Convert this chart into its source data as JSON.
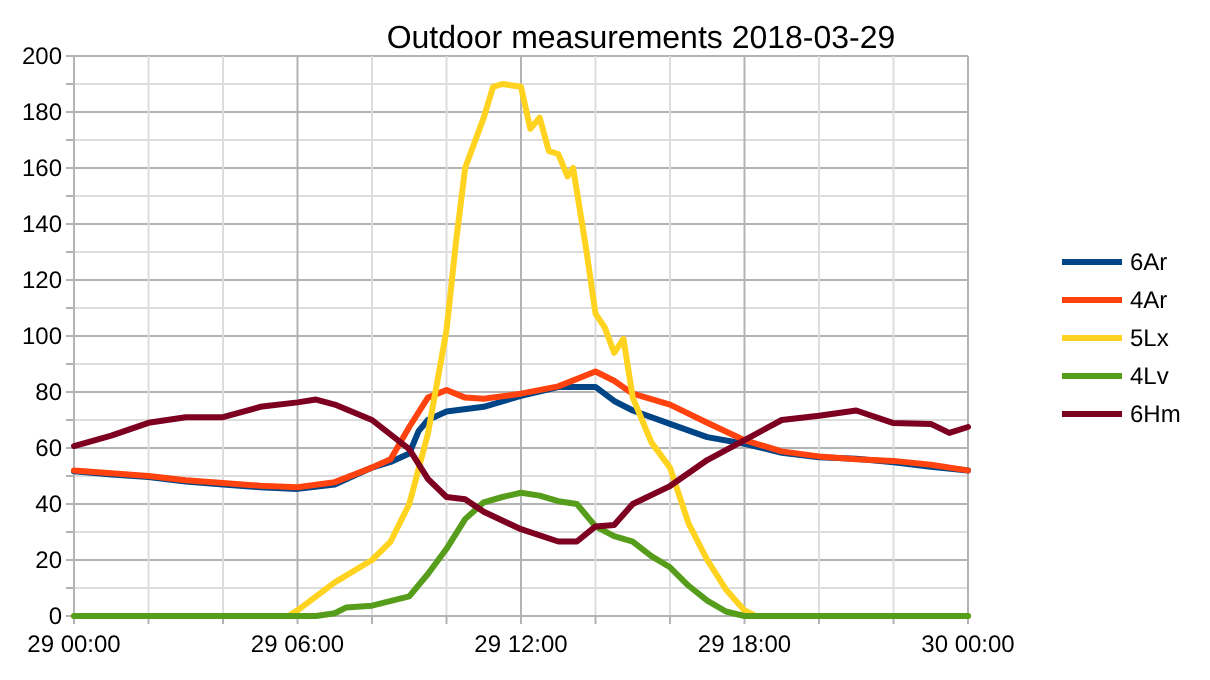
{
  "chart_data": {
    "type": "line",
    "title": "Outdoor measurements 2018-03-29",
    "xlim": [
      "2018-03-29T00:00",
      "2018-03-30T00:00"
    ],
    "ylim": [
      0,
      200
    ],
    "xticks": [
      {
        "value": "2018-03-29T00:00",
        "label": "29 00:00"
      },
      {
        "value": "2018-03-29T02:00",
        "label": null
      },
      {
        "value": "2018-03-29T04:00",
        "label": null
      },
      {
        "value": "2018-03-29T06:00",
        "label": "29 06:00"
      },
      {
        "value": "2018-03-29T08:00",
        "label": null
      },
      {
        "value": "2018-03-29T10:00",
        "label": null
      },
      {
        "value": "2018-03-29T12:00",
        "label": "29 12:00"
      },
      {
        "value": "2018-03-29T14:00",
        "label": null
      },
      {
        "value": "2018-03-29T16:00",
        "label": null
      },
      {
        "value": "2018-03-29T18:00",
        "label": "29 18:00"
      },
      {
        "value": "2018-03-29T20:00",
        "label": null
      },
      {
        "value": "2018-03-29T22:00",
        "label": null
      },
      {
        "value": "2018-03-30T00:00",
        "label": "30 00:00"
      }
    ],
    "yticks": [
      0,
      {
        "value": 10,
        "label": null
      },
      20,
      {
        "value": 30,
        "label": null
      },
      40,
      {
        "value": 50,
        "label": null
      },
      60,
      {
        "value": 70,
        "label": null
      },
      80,
      {
        "value": 90,
        "label": null
      },
      100,
      {
        "value": 110,
        "label": null
      },
      120,
      {
        "value": 130,
        "label": null
      },
      140,
      {
        "value": 150,
        "label": null
      },
      160,
      {
        "value": 170,
        "label": null
      },
      180,
      {
        "value": 190,
        "label": null
      },
      200
    ],
    "grid": true,
    "legend": "right",
    "marker": "none",
    "line_style": "solid",
    "series": [
      {
        "name": "6Ar",
        "color": "#004586",
        "x": [
          "2018-03-29T00:00",
          "2018-03-29T01:00",
          "2018-03-29T02:00",
          "2018-03-29T03:00",
          "2018-03-29T04:00",
          "2018-03-29T05:00",
          "2018-03-29T06:00",
          "2018-03-29T07:00",
          "2018-03-29T08:00",
          "2018-03-29T08:30",
          "2018-03-29T09:00",
          "2018-03-29T09:15",
          "2018-03-29T09:30",
          "2018-03-29T10:00",
          "2018-03-29T11:00",
          "2018-03-29T12:00",
          "2018-03-29T13:00",
          "2018-03-29T14:00",
          "2018-03-29T14:30",
          "2018-03-29T15:00",
          "2018-03-29T16:00",
          "2018-03-29T17:00",
          "2018-03-29T18:00",
          "2018-03-29T19:00",
          "2018-03-29T20:00",
          "2018-03-29T21:00",
          "2018-03-29T22:00",
          "2018-03-29T23:00",
          "2018-03-30T00:00"
        ],
        "values": [
          51.7,
          50.5,
          49.6,
          48,
          47,
          46,
          45.4,
          47,
          53,
          55,
          58,
          66,
          70,
          73,
          74.7,
          78.6,
          81.8,
          81.8,
          76.8,
          73.4,
          68.6,
          63.9,
          61.5,
          58.3,
          56.7,
          56.2,
          54.9,
          53.3,
          52
        ]
      },
      {
        "name": "4Ar",
        "color": "#ff420e",
        "x": [
          "2018-03-29T00:00",
          "2018-03-29T01:00",
          "2018-03-29T02:00",
          "2018-03-29T03:00",
          "2018-03-29T04:00",
          "2018-03-29T05:00",
          "2018-03-29T06:00",
          "2018-03-29T07:00",
          "2018-03-29T08:00",
          "2018-03-29T08:30",
          "2018-03-29T09:00",
          "2018-03-29T09:30",
          "2018-03-29T10:00",
          "2018-03-29T10:30",
          "2018-03-29T11:00",
          "2018-03-29T12:00",
          "2018-03-29T13:00",
          "2018-03-29T14:00",
          "2018-03-29T14:30",
          "2018-03-29T15:00",
          "2018-03-29T16:00",
          "2018-03-29T17:00",
          "2018-03-29T18:00",
          "2018-03-29T19:00",
          "2018-03-29T20:00",
          "2018-03-29T21:00",
          "2018-03-29T22:00",
          "2018-03-29T23:00",
          "2018-03-30T00:00"
        ],
        "values": [
          52,
          51,
          50,
          48.5,
          47.5,
          46.5,
          46,
          47.8,
          53,
          56,
          67.5,
          78,
          80.7,
          78,
          77.6,
          79.4,
          82,
          87.3,
          84,
          79.4,
          75.5,
          69,
          62.8,
          58.8,
          57,
          56,
          55.4,
          54,
          52
        ]
      },
      {
        "name": "5Lx",
        "color": "#ffd320",
        "x": [
          "2018-03-29T00:00",
          "2018-03-29T05:45",
          "2018-03-29T06:00",
          "2018-03-29T07:00",
          "2018-03-29T08:00",
          "2018-03-29T08:30",
          "2018-03-29T09:00",
          "2018-03-29T09:30",
          "2018-03-29T10:00",
          "2018-03-29T10:15",
          "2018-03-29T10:30",
          "2018-03-29T10:45",
          "2018-03-29T11:00",
          "2018-03-29T11:15",
          "2018-03-29T11:30",
          "2018-03-29T12:00",
          "2018-03-29T12:15",
          "2018-03-29T12:30",
          "2018-03-29T12:45",
          "2018-03-29T13:00",
          "2018-03-29T13:15",
          "2018-03-29T13:24",
          "2018-03-29T13:45",
          "2018-03-29T14:00",
          "2018-03-29T14:15",
          "2018-03-29T14:30",
          "2018-03-29T14:45",
          "2018-03-29T15:00",
          "2018-03-29T15:30",
          "2018-03-29T16:00",
          "2018-03-29T16:30",
          "2018-03-29T17:00",
          "2018-03-29T17:30",
          "2018-03-29T18:00",
          "2018-03-29T18:18",
          "2018-03-30T00:00"
        ],
        "values": [
          0,
          0,
          2,
          12,
          20,
          26.6,
          40,
          65,
          102,
          133,
          160,
          169,
          178,
          189,
          190,
          189,
          174,
          178,
          166,
          165,
          157,
          160,
          131,
          108,
          103,
          94,
          99,
          78,
          62,
          53,
          33,
          20,
          9.5,
          2,
          0,
          0
        ]
      },
      {
        "name": "4Lv",
        "color": "#579d1c",
        "x": [
          "2018-03-29T00:00",
          "2018-03-29T06:30",
          "2018-03-29T07:00",
          "2018-03-29T07:18",
          "2018-03-29T08:00",
          "2018-03-29T09:00",
          "2018-03-29T09:30",
          "2018-03-29T10:00",
          "2018-03-29T10:30",
          "2018-03-29T11:00",
          "2018-03-29T11:30",
          "2018-03-29T12:00",
          "2018-03-29T12:30",
          "2018-03-29T13:00",
          "2018-03-29T13:30",
          "2018-03-29T14:00",
          "2018-03-29T14:30",
          "2018-03-29T15:00",
          "2018-03-29T15:30",
          "2018-03-29T16:00",
          "2018-03-29T16:30",
          "2018-03-29T17:00",
          "2018-03-29T17:30",
          "2018-03-29T18:00",
          "2018-03-30T00:00"
        ],
        "values": [
          0,
          0,
          1,
          3,
          3.7,
          7,
          15,
          24,
          34.6,
          40.6,
          42.5,
          44,
          43,
          41,
          40,
          32,
          28.5,
          26.6,
          21.4,
          17.4,
          10.8,
          5.5,
          1.6,
          0,
          0
        ]
      },
      {
        "name": "6Hm",
        "color": "#7e0021",
        "x": [
          "2018-03-29T00:00",
          "2018-03-29T01:00",
          "2018-03-29T02:00",
          "2018-03-29T03:00",
          "2018-03-29T04:00",
          "2018-03-29T05:00",
          "2018-03-29T06:00",
          "2018-03-29T06:30",
          "2018-03-29T07:00",
          "2018-03-29T08:00",
          "2018-03-29T09:00",
          "2018-03-29T09:30",
          "2018-03-29T10:00",
          "2018-03-29T10:30",
          "2018-03-29T11:00",
          "2018-03-29T12:00",
          "2018-03-29T13:00",
          "2018-03-29T13:30",
          "2018-03-29T14:00",
          "2018-03-29T14:30",
          "2018-03-29T15:00",
          "2018-03-29T16:00",
          "2018-03-29T17:00",
          "2018-03-29T18:00",
          "2018-03-29T19:00",
          "2018-03-29T20:00",
          "2018-03-29T21:00",
          "2018-03-29T22:00",
          "2018-03-29T23:00",
          "2018-03-29T23:30",
          "2018-03-30T00:00"
        ],
        "values": [
          60.7,
          64.4,
          69,
          71,
          71,
          74.7,
          76.3,
          77.3,
          75.5,
          70,
          59.6,
          49,
          42.5,
          41.7,
          37.2,
          31,
          26.6,
          26.6,
          32,
          32.5,
          40,
          46.4,
          55.7,
          62.8,
          70,
          71.5,
          73.4,
          68.9,
          68.6,
          65.4,
          67.5
        ]
      }
    ]
  }
}
